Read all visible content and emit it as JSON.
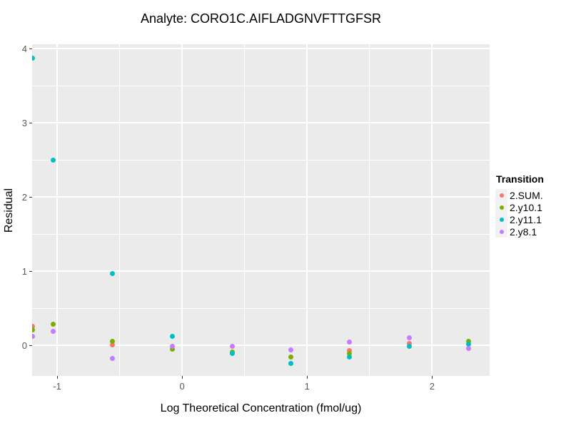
{
  "title": "Analyte: CORO1C.AIFLADGNVFTTGFSR",
  "axes": {
    "x_label": "Log Theoretical Concentration (fmol/ug)",
    "y_label": "Residual",
    "x_tick_labels": [
      "-1",
      "0",
      "1",
      "2"
    ],
    "y_tick_labels": [
      "0",
      "1",
      "2",
      "3",
      "4"
    ]
  },
  "legend": {
    "title": "Transition",
    "items": [
      "2.SUM.",
      "2.y10.1",
      "2.y11.1",
      "2.y8.1"
    ]
  },
  "colors": {
    "panel_bg": "#EBEBEB",
    "grid": "#FFFFFF",
    "tick_mark": "#333333",
    "tick_label": "#595959",
    "legend_key_bg": "#F2F2F2",
    "series_salmon": "#F8766D",
    "series_green": "#7CAE00",
    "series_teal": "#00BFC4",
    "series_purple": "#C77CFF"
  },
  "chart_data": {
    "type": "scatter",
    "title": "Analyte: CORO1C.AIFLADGNVFTTGFSR",
    "xlabel": "Log Theoretical Concentration (fmol/ug)",
    "ylabel": "Residual",
    "xlim": [
      -1.2,
      2.46
    ],
    "ylim": [
      -0.41,
      4.06
    ],
    "x_ticks": [
      -1,
      0,
      1,
      2
    ],
    "y_ticks": [
      0,
      1,
      2,
      3,
      4
    ],
    "x_minor_ticks": [
      -0.5,
      0.5,
      1.5
    ],
    "y_minor_ticks": [
      0.5,
      1.5,
      2.5,
      3.5
    ],
    "grid": true,
    "legend_position": "right",
    "legend_title": "Transition",
    "series": [
      {
        "name": "2.SUM.",
        "color": "#F8766D",
        "points": [
          [
            -1.2,
            0.26
          ],
          [
            -0.56,
            0.01
          ],
          [
            1.34,
            -0.07
          ],
          [
            1.82,
            0.03
          ]
        ]
      },
      {
        "name": "2.y10.1",
        "color": "#7CAE00",
        "points": [
          [
            -1.2,
            0.21
          ],
          [
            -1.03,
            0.29
          ],
          [
            -0.56,
            0.06
          ],
          [
            -0.08,
            -0.05
          ],
          [
            0.4,
            -0.09
          ],
          [
            0.87,
            -0.16
          ],
          [
            1.34,
            -0.11
          ],
          [
            2.29,
            0.06
          ]
        ]
      },
      {
        "name": "2.y11.1",
        "color": "#00BFC4",
        "points": [
          [
            -1.2,
            3.87
          ],
          [
            -1.03,
            2.5
          ],
          [
            -0.56,
            0.97
          ],
          [
            -0.08,
            0.12
          ],
          [
            0.4,
            -0.11
          ],
          [
            0.87,
            -0.24
          ],
          [
            1.34,
            -0.16
          ],
          [
            1.82,
            -0.01
          ],
          [
            2.29,
            0.02
          ]
        ]
      },
      {
        "name": "2.y8.1",
        "color": "#C77CFF",
        "points": [
          [
            -1.2,
            0.12
          ],
          [
            -1.03,
            0.19
          ],
          [
            -0.56,
            -0.17
          ],
          [
            -0.08,
            -0.01
          ],
          [
            0.4,
            -0.01
          ],
          [
            0.87,
            -0.06
          ],
          [
            1.34,
            0.05
          ],
          [
            1.82,
            0.1
          ],
          [
            2.29,
            -0.04
          ]
        ]
      }
    ]
  }
}
